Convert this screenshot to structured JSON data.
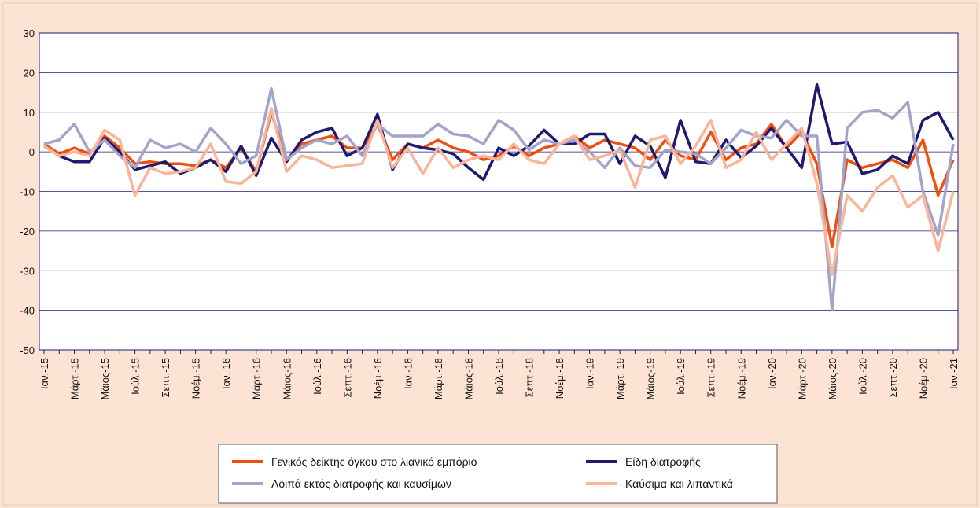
{
  "chart_data": {
    "type": "line",
    "categories": [
      "Ιαν.-15",
      null,
      "Μάρτ.-15",
      null,
      "Μάιος-15",
      null,
      "Ιούλ.-15",
      null,
      "Σεπτ.-15",
      null,
      "Νοέμ.-15",
      null,
      "Ιαν.-16",
      null,
      "Μάρτ.-16",
      null,
      "Μάιος-16",
      null,
      "Ιούλ.-16",
      null,
      "Σεπτ.-16",
      null,
      "Νοέμ.-16",
      null,
      "Ιαν.-18",
      null,
      "Μάρτ.-18",
      null,
      "Μάιος-18",
      null,
      "Ιούλ.-18",
      null,
      "Σεπτ.-18",
      null,
      "Νοέμ.-18",
      null,
      "Ιαν.-19",
      null,
      "Μάρτ.-19",
      null,
      "Μάιος-19",
      null,
      "Ιούλ.-19",
      null,
      "Σεπτ.-19",
      null,
      "Νοέμ.-19",
      null,
      "Ιαν.-20",
      null,
      "Μάρτ.-20",
      null,
      "Μάιος-20",
      null,
      "Ιούλ.-20",
      null,
      "Σεπτ.-20",
      null,
      "Νοέμ.-20",
      null,
      "Ιαν.-21"
    ],
    "series": [
      {
        "name": "Γενικός δείκτης όγκου στο λιανικό εμπόριο",
        "color": "#f04e0c",
        "values": [
          2,
          -0.5,
          1,
          -0.5,
          4,
          1,
          -3,
          -2.5,
          -3,
          -3,
          -3.5,
          -2,
          -4,
          1,
          -5,
          10,
          -2,
          2,
          3,
          4,
          1,
          1,
          7,
          -2,
          2,
          1,
          3,
          1,
          0,
          -2,
          -1,
          1.5,
          -1,
          1,
          2,
          4,
          1,
          3,
          2,
          1,
          -2,
          3,
          -1,
          -2,
          5,
          -2,
          1,
          2,
          7,
          1,
          5,
          -3,
          -24,
          -2,
          -4,
          -3,
          -2,
          -4,
          3,
          -11,
          -2
        ]
      },
      {
        "name": "Είδη διατροφής",
        "color": "#1f1a6e",
        "values": [
          1.5,
          -1,
          -2.5,
          -2.5,
          3.5,
          0,
          -4.5,
          -3.5,
          -2.5,
          -5.5,
          -4,
          -2,
          -5,
          1.5,
          -6,
          3.5,
          -2.5,
          3,
          5,
          6,
          -1,
          1,
          9.5,
          -4.5,
          2,
          1,
          0.5,
          -0.5,
          -4,
          -7,
          1,
          -1,
          1.5,
          5.5,
          2,
          2,
          4.5,
          4.5,
          -3,
          4,
          1.5,
          -6.5,
          8,
          -2.5,
          -3,
          3,
          -1.5,
          1.5,
          6,
          1,
          -4,
          17,
          2,
          2.5,
          -5.5,
          -4.5,
          -1,
          -3,
          8,
          10,
          3
        ]
      },
      {
        "name": "Λοιπά εκτός διατροφής και καυσίμων",
        "color": "#a3a3cc",
        "values": [
          2,
          3,
          7,
          0,
          3,
          -1,
          -4,
          3,
          1,
          2,
          0,
          6,
          2,
          -3,
          -1,
          16,
          -2,
          1,
          3,
          2,
          4,
          -1,
          7,
          4,
          4,
          4,
          7,
          4.5,
          4,
          2,
          8,
          5.5,
          0.5,
          3,
          2,
          3,
          0,
          -4,
          1,
          -3.5,
          -4,
          0.5,
          0,
          -0.5,
          -3,
          1,
          5.5,
          4,
          3.5,
          8,
          4,
          4,
          -40,
          6,
          10,
          10.5,
          8.5,
          12.5,
          -10,
          -21,
          2
        ]
      },
      {
        "name": "Καύσιμα και λιπαντικά",
        "color": "#f9b59a",
        "values": [
          1.5,
          -1,
          0,
          -1,
          5.5,
          3,
          -11,
          -4,
          -5.5,
          -5,
          -4,
          2,
          -7.5,
          -8,
          -5,
          11,
          -5,
          -1,
          -2,
          -4,
          -3.5,
          -3,
          8,
          -4,
          1,
          -5.5,
          1,
          -4,
          -2,
          -1,
          -2,
          2,
          -2,
          -3,
          2,
          4,
          -2,
          -1,
          0.5,
          -9,
          3,
          4,
          -3,
          1.5,
          8,
          -4,
          -2,
          5,
          -2,
          2,
          6,
          -8,
          -31,
          -11,
          -15,
          -9,
          -6,
          -14,
          -11,
          -25,
          -10
        ]
      }
    ],
    "ylim": [
      -50,
      30
    ],
    "yticks": [
      -50,
      -40,
      -30,
      -20,
      -10,
      0,
      10,
      20,
      30
    ],
    "grid": true,
    "legend": "bottom"
  }
}
